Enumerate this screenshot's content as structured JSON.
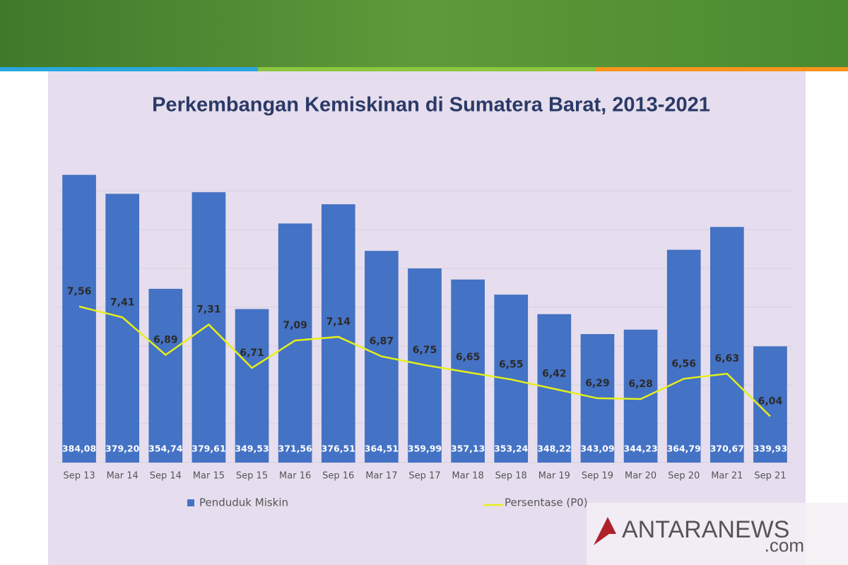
{
  "chart_data": {
    "type": "combo",
    "title": "Perkembangan Kemiskinan di Sumatera Barat, 2013-2021",
    "categories": [
      "Sep 13",
      "Mar 14",
      "Sep 14",
      "Mar 15",
      "Sep 15",
      "Mar 16",
      "Sep 16",
      "Mar 17",
      "Sep 17",
      "Mar 18",
      "Sep 18",
      "Mar 19",
      "Sep 19",
      "Mar 20",
      "Sep 20",
      "Mar 21",
      "Sep 21"
    ],
    "series": [
      {
        "name": "Penduduk Miskin",
        "type": "bar",
        "color": "#4472c4",
        "values": [
          384.08,
          379.2,
          354.74,
          379.61,
          349.53,
          371.56,
          376.51,
          364.51,
          359.99,
          357.13,
          353.24,
          348.22,
          343.09,
          344.23,
          364.79,
          370.67,
          339.93
        ],
        "value_labels": [
          "384,08",
          "379,20",
          "354,74",
          "379,61",
          "349,53",
          "371,56",
          "376,51",
          "364,51",
          "359,99",
          "357,13",
          "353,24",
          "348,22",
          "343,09",
          "344,23",
          "364,79",
          "370,67",
          "339,93"
        ]
      },
      {
        "name": "Persentase (P0)",
        "type": "line",
        "axis": "y2",
        "color": "#e6ef1a",
        "values": [
          7.56,
          7.41,
          6.89,
          7.31,
          6.71,
          7.09,
          7.14,
          6.87,
          6.75,
          6.65,
          6.55,
          6.42,
          6.29,
          6.28,
          6.56,
          6.63,
          6.04
        ],
        "value_labels": [
          "7,56",
          "7,41",
          "6,89",
          "7,31",
          "6,71",
          "7,09",
          "7,14",
          "6,87",
          "6,75",
          "6,65",
          "6,55",
          "6,42",
          "6,29",
          "6,28",
          "6,56",
          "6,63",
          "6,04"
        ]
      }
    ],
    "ylim": [
      310,
      390
    ],
    "yticks": [
      310,
      320,
      330,
      340,
      350,
      360,
      370,
      380
    ],
    "y2lim": [
      5.4,
      9.7
    ],
    "grid": true,
    "legend": "bottom",
    "watermark": {
      "brand": "ANTARANEWS",
      "domain": ".com"
    }
  }
}
